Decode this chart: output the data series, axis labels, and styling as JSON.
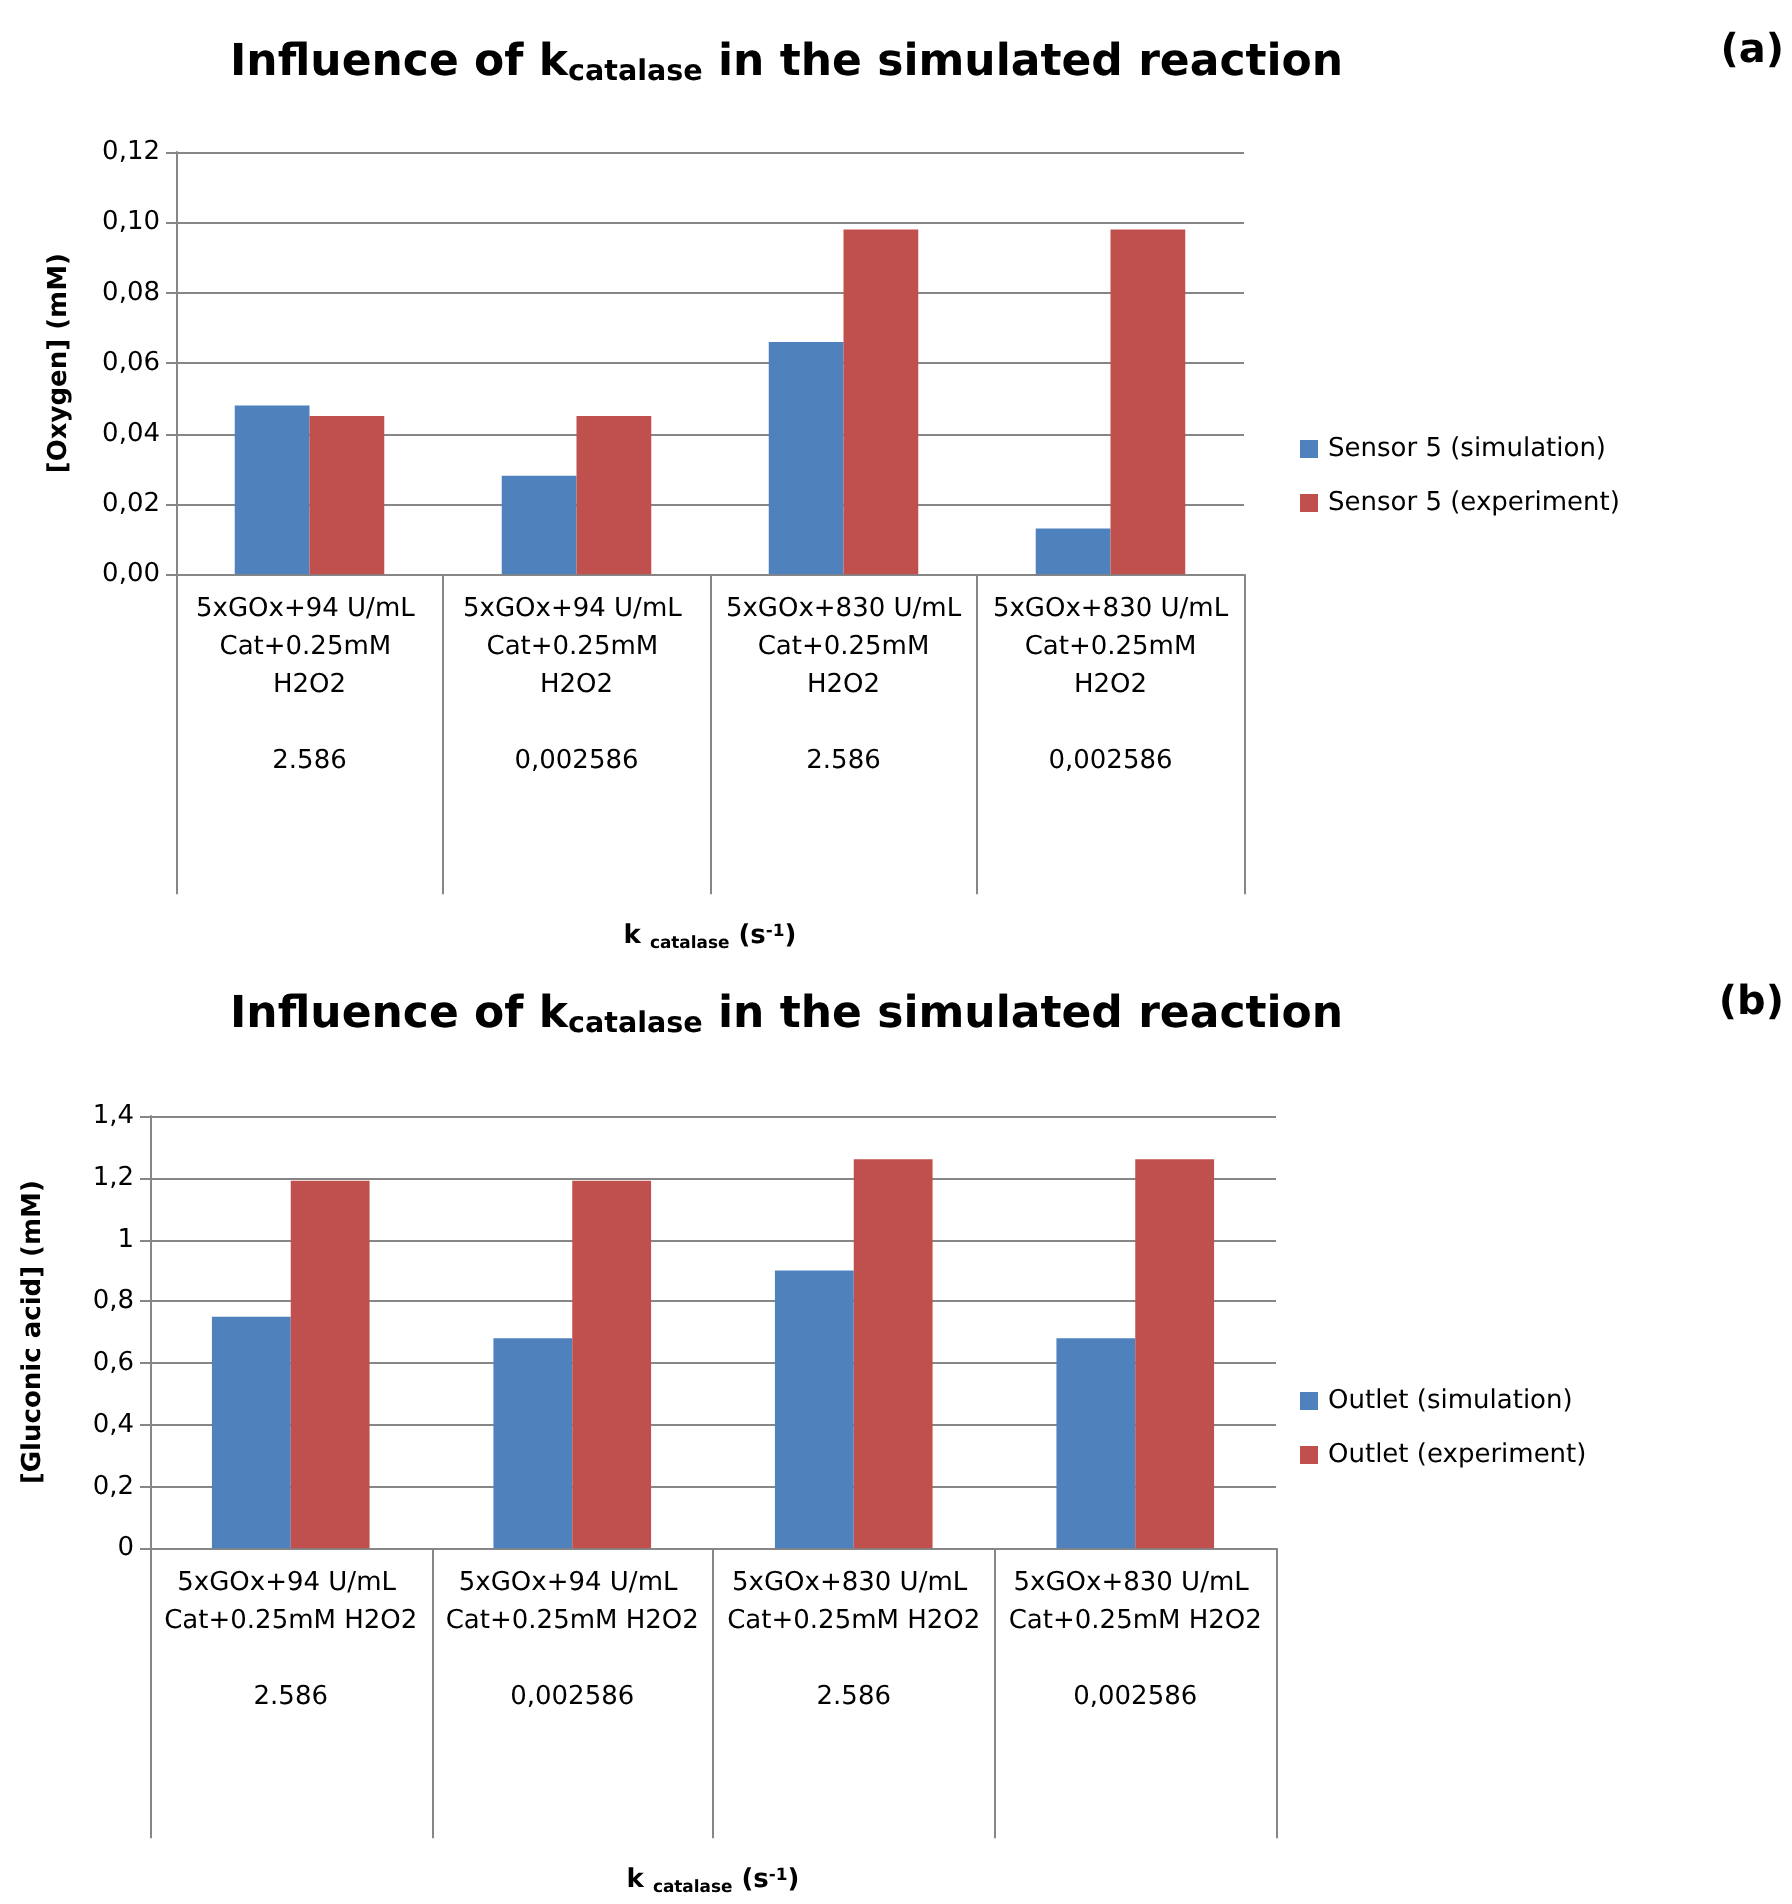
{
  "chart_data": [
    {
      "type": "bar",
      "title": "Influence of k$_{catalase}$ in the simulated reaction",
      "xlabel": "k $_{catalase}$ (s$^{-1}$)",
      "ylabel": "[Oxygen] (mM)",
      "categories": [
        "5xGOx+94 U/mL Cat+0.25mM H2O2\n2.586",
        "5xGOx+94 U/mL Cat+0.25mM H2O2\n0,002586",
        "5xGOx+830 U/mL Cat+0.25mM H2O2\n2.586",
        "5xGOx+830 U/mL Cat+0.25mM H2O2\n0,002586"
      ],
      "series": [
        {
          "name": "Sensor 5 (simulation)",
          "color": "#4f81bd",
          "values": [
            0.048,
            0.028,
            0.066,
            0.013
          ]
        },
        {
          "name": "Sensor 5 (experiment)",
          "color": "#c0504d",
          "values": [
            0.045,
            0.045,
            0.098,
            0.098
          ]
        }
      ],
      "ylim": [
        0,
        0.12
      ],
      "yticks": [
        {
          "value": 0,
          "label": "0,00"
        },
        {
          "value": 0.02,
          "label": "0,02"
        },
        {
          "value": 0.04,
          "label": "0,04"
        },
        {
          "value": 0.06,
          "label": "0,06"
        },
        {
          "value": 0.08,
          "label": "0,08"
        },
        {
          "value": 0.1,
          "label": "0,10"
        },
        {
          "value": 0.12,
          "label": "0,12"
        }
      ],
      "grid": "y",
      "legend": "right",
      "annotations": [
        "(a)"
      ]
    },
    {
      "type": "bar",
      "title": "Influence of k$_{catalase}$ in the simulated reaction",
      "xlabel": "k $_{catalase}$ (s$^{-1}$)",
      "ylabel": "[Gluconic acid] (mM)",
      "categories": [
        "5xGOx+94 U/mL Cat+0.25mM H2O2\n2.586",
        "5xGOx+94 U/mL Cat+0.25mM H2O2\n0,002586",
        "5xGOx+830 U/mL Cat+0.25mM H2O2\n2.586",
        "5xGOx+830 U/mL Cat+0.25mM H2O2\n0,002586"
      ],
      "series": [
        {
          "name": "Outlet (simulation)",
          "color": "#4f81bd",
          "values": [
            0.75,
            0.68,
            0.9,
            0.68
          ]
        },
        {
          "name": "Outlet (experiment)",
          "color": "#c0504d",
          "values": [
            1.19,
            1.19,
            1.26,
            1.26
          ]
        }
      ],
      "ylim": [
        0,
        1.4
      ],
      "yticks": [
        {
          "value": 0,
          "label": "0"
        },
        {
          "value": 0.2,
          "label": "0,2"
        },
        {
          "value": 0.4,
          "label": "0,4"
        },
        {
          "value": 0.6,
          "label": "0,6"
        },
        {
          "value": 0.8,
          "label": "0,8"
        },
        {
          "value": 1,
          "label": "1"
        },
        {
          "value": 1.2,
          "label": "1,2"
        },
        {
          "value": 1.4,
          "label": "1,4"
        }
      ],
      "grid": "y",
      "legend": "right",
      "annotations": [
        "(b)"
      ]
    }
  ]
}
